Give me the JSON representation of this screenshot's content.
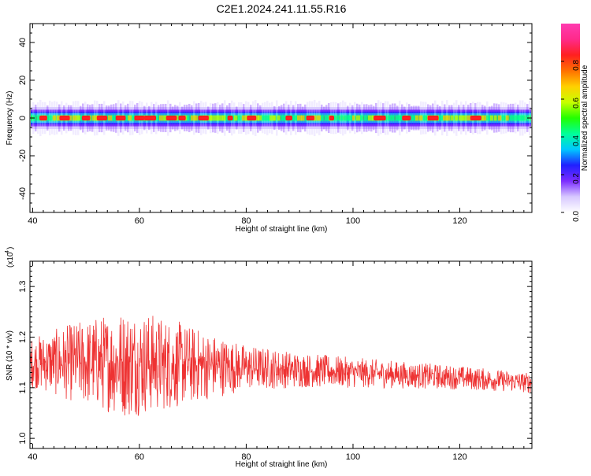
{
  "title": "C2E1.2024.241.11.55.R16",
  "chart_data": [
    {
      "type": "heatmap",
      "xlabel": "Height of straight line (km)",
      "ylabel": "Frequency (Hz)",
      "xlim": [
        39.5,
        133.5
      ],
      "ylim": [
        -50,
        50
      ],
      "xticks": [
        40,
        60,
        80,
        100,
        120
      ],
      "yticks": [
        40,
        20,
        0,
        -20,
        -40
      ],
      "band_center_hz": 0,
      "band_halfwidth_hz": 4,
      "colorbar": {
        "label": "Normalized spectral amplitude",
        "range": [
          0.0,
          1.0
        ],
        "ticks": [
          "0.0",
          "0.2",
          "0.4",
          "0.6",
          "0.8"
        ],
        "tick_values": [
          0.0,
          0.2,
          0.4,
          0.6,
          0.8
        ],
        "colors": [
          "#ffffff",
          "#d7c8ff",
          "#7b2cff",
          "#2020ff",
          "#00c8ff",
          "#00ff9a",
          "#22ff00",
          "#c8ff00",
          "#ffd000",
          "#ff7000",
          "#ff2020",
          "#ff2a8a",
          "#ff3bb0"
        ]
      },
      "peak_heights_km": [
        42,
        46,
        50,
        53,
        56.5,
        60,
        62,
        66,
        68,
        72,
        77,
        81,
        88,
        92,
        96,
        105,
        110,
        115,
        123
      ]
    },
    {
      "type": "line",
      "xlabel": "Height of straight line (km)",
      "ylabel": "SNR (10 * v/v)",
      "exponent_label": "(x10",
      "exponent_power": "4",
      "xlim": [
        39.5,
        133.5
      ],
      "ylim": [
        0.98,
        1.35
      ],
      "xticks": [
        40,
        60,
        80,
        100,
        120
      ],
      "yticks": [
        1.0,
        1.1,
        1.2,
        1.3
      ],
      "ytick_labels": [
        "1.0",
        "1.1",
        "1.2",
        "1.3"
      ],
      "line_color": "#ee3333",
      "baseline": [
        [
          40,
          1.15
        ],
        [
          60,
          1.15
        ],
        [
          80,
          1.14
        ],
        [
          100,
          1.13
        ],
        [
          120,
          1.12
        ],
        [
          133,
          1.11
        ]
      ],
      "amplitude": [
        [
          40,
          0.05
        ],
        [
          48,
          0.08
        ],
        [
          58,
          0.11
        ],
        [
          66,
          0.09
        ],
        [
          72,
          0.07
        ],
        [
          80,
          0.045
        ],
        [
          90,
          0.035
        ],
        [
          100,
          0.03
        ],
        [
          115,
          0.025
        ],
        [
          133,
          0.02
        ]
      ]
    }
  ]
}
